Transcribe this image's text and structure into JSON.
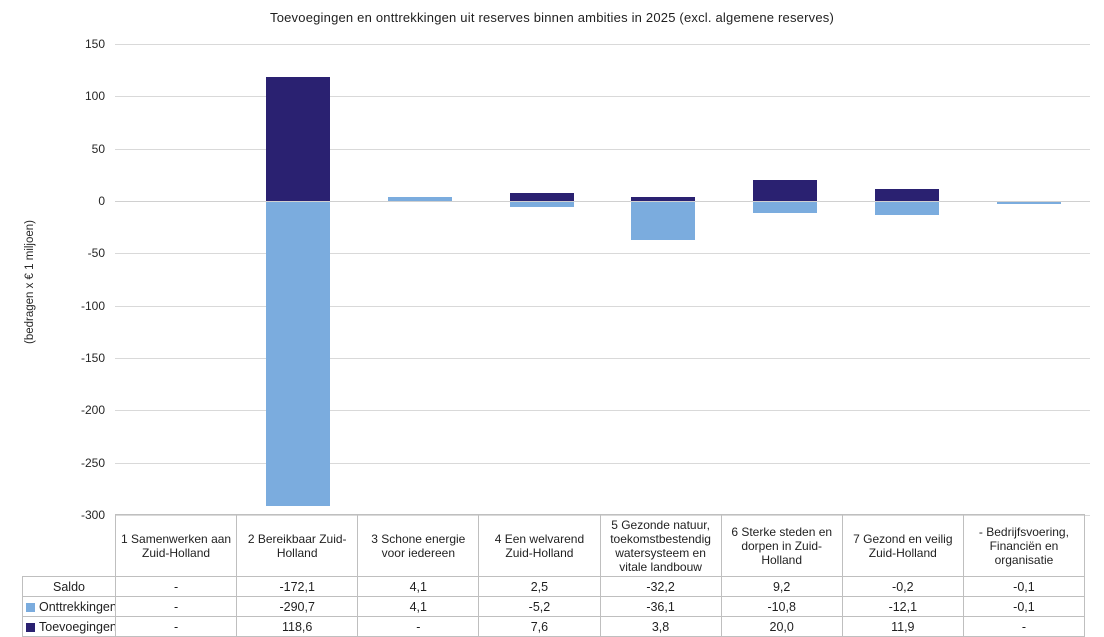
{
  "title": "Toevoegingen en onttrekkingen uit reserves binnen ambities in 2025 (excl. algemene reserves)",
  "y_axis_label": "(bedragen x € 1 miljoen)",
  "colors": {
    "toevoegingen": "#2a2171",
    "onttrekkingen": "#7bacde",
    "gridline": "#d9d9d9",
    "table_border": "#bfbfbf",
    "text": "#262626"
  },
  "chart_data": {
    "type": "bar",
    "title": "Toevoegingen en onttrekkingen uit reserves binnen ambities in 2025 (excl. algemene reserves)",
    "xlabel": "",
    "ylabel": "(bedragen x € 1 miljoen)",
    "ylim": [
      -300,
      150
    ],
    "ytick_step": 50,
    "yticks": [
      150,
      100,
      50,
      0,
      -50,
      -100,
      -150,
      -200,
      -250,
      -300
    ],
    "grid": "horizontal",
    "legend_position": "table-row-labels",
    "categories": [
      "1 Samenwerken aan Zuid-Holland",
      "2 Bereikbaar Zuid-Holland",
      "3 Schone energie voor iedereen",
      "4 Een welvarend Zuid-Holland",
      "5 Gezonde natuur, toekomstbestendig watersysteem en vitale landbouw",
      "6 Sterke steden en dorpen in Zuid-Holland",
      "7 Gezond en veilig Zuid-Holland",
      "- Bedrijfsvoering, Financiën en organisatie"
    ],
    "series": [
      {
        "name": "Toevoegingen",
        "color": "#2a2171",
        "values": [
          null,
          118.6,
          null,
          7.6,
          3.8,
          20.0,
          11.9,
          null
        ]
      },
      {
        "name": "Onttrekkingen",
        "color": "#7bacde",
        "values": [
          null,
          -290.7,
          4.1,
          -5.2,
          -36.1,
          -10.8,
          -12.1,
          -0.1
        ]
      }
    ]
  },
  "table": {
    "rows": [
      {
        "label": "Saldo",
        "marker": null,
        "values": [
          "-",
          "-172,1",
          "4,1",
          "2,5",
          "-32,2",
          "9,2",
          "-0,2",
          "-0,1"
        ]
      },
      {
        "label": "Onttrekkingen",
        "marker": "#7bacde",
        "values": [
          "-",
          "-290,7",
          "4,1",
          "-5,2",
          "-36,1",
          "-10,8",
          "-12,1",
          "-0,1"
        ]
      },
      {
        "label": "Toevoegingen",
        "marker": "#2a2171",
        "values": [
          "-",
          "118,6",
          "-",
          "7,6",
          "3,8",
          "20,0",
          "11,9",
          "-"
        ]
      }
    ]
  }
}
